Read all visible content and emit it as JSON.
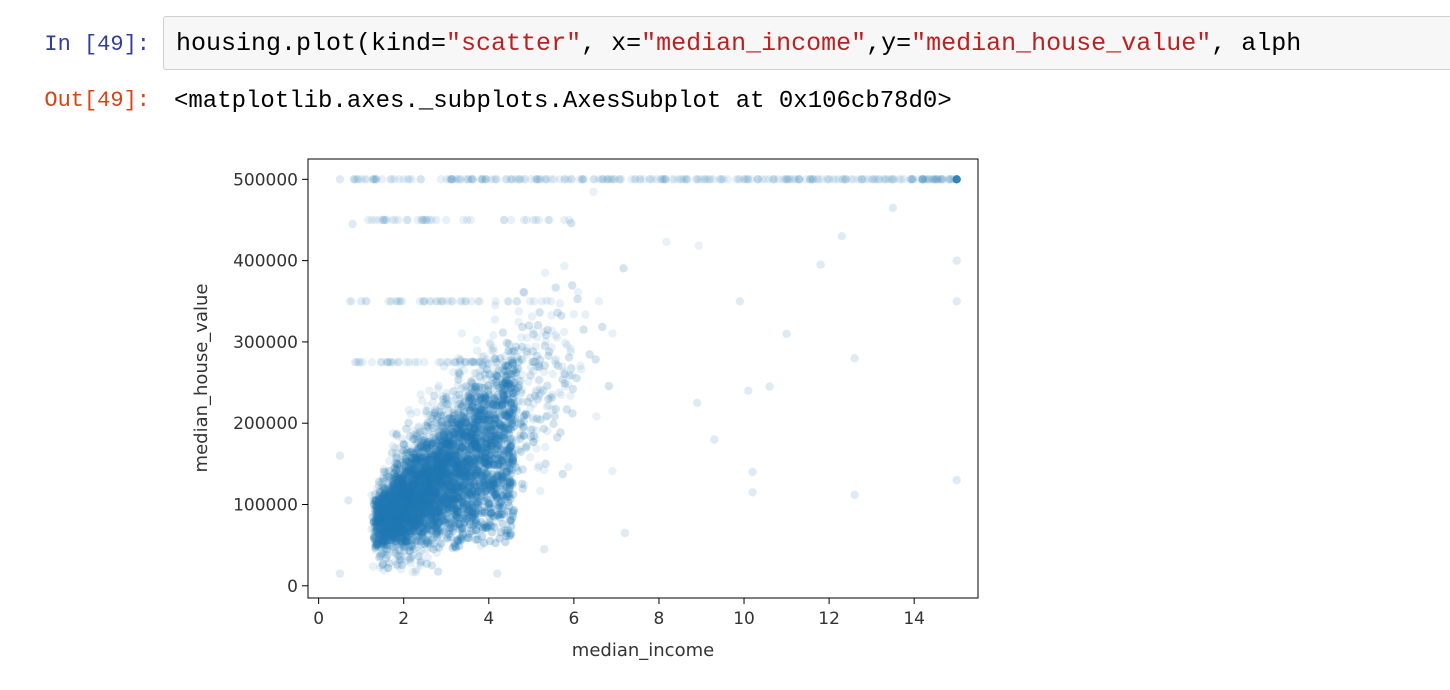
{
  "notebook": {
    "input_prompt": "In [49]:",
    "output_prompt": "Out[49]:",
    "code": {
      "prefix": "housing.plot(kind=",
      "arg1": "\"scatter\"",
      "sep1": ", x=",
      "arg2": "\"median_income\"",
      "sep2": ",y=",
      "arg3": "\"median_house_value\"",
      "sep3": ", alph"
    },
    "output_text": "<matplotlib.axes._subplots.AxesSubplot at 0x106cb78d0>"
  },
  "chart_data": {
    "type": "scatter",
    "title": "",
    "xlabel": "median_income",
    "ylabel": "median_house_value",
    "xlim": [
      -0.25,
      15.5
    ],
    "ylim": [
      -15000,
      525000
    ],
    "xticks": [
      0,
      2,
      4,
      6,
      8,
      10,
      12,
      14
    ],
    "yticks": [
      0,
      100000,
      200000,
      300000,
      400000,
      500000
    ],
    "xtick_labels": [
      "0",
      "2",
      "4",
      "6",
      "8",
      "10",
      "12",
      "14"
    ],
    "ytick_labels": [
      "0",
      "100000",
      "200000",
      "300000",
      "400000",
      "500000"
    ],
    "marker_color": "#1f77b4",
    "alpha": 0.1,
    "grid": false,
    "points": [
      [
        15.0,
        500001
      ],
      [
        15.0,
        400000
      ],
      [
        15.0,
        350000
      ],
      [
        15.0,
        130000
      ],
      [
        12.6,
        280000
      ],
      [
        12.6,
        112000
      ],
      [
        10.2,
        140000
      ],
      [
        10.2,
        115000
      ],
      [
        10.1,
        240000
      ],
      [
        10.6,
        245000
      ],
      [
        11.0,
        310000
      ],
      [
        9.3,
        180000
      ],
      [
        8.9,
        225000
      ],
      [
        13.5,
        465000
      ],
      [
        12.3,
        430000
      ],
      [
        11.8,
        395000
      ],
      [
        7.2,
        65000
      ],
      [
        5.3,
        45000
      ],
      [
        4.2,
        15000
      ],
      [
        0.5,
        15000
      ],
      [
        1.0,
        350000
      ],
      [
        1.7,
        350000
      ],
      [
        0.8,
        445000
      ],
      [
        1.3,
        500001
      ],
      [
        0.5,
        500001
      ],
      [
        0.5,
        160000
      ],
      [
        0.7,
        105000
      ],
      [
        9.9,
        350000
      ]
    ]
  }
}
